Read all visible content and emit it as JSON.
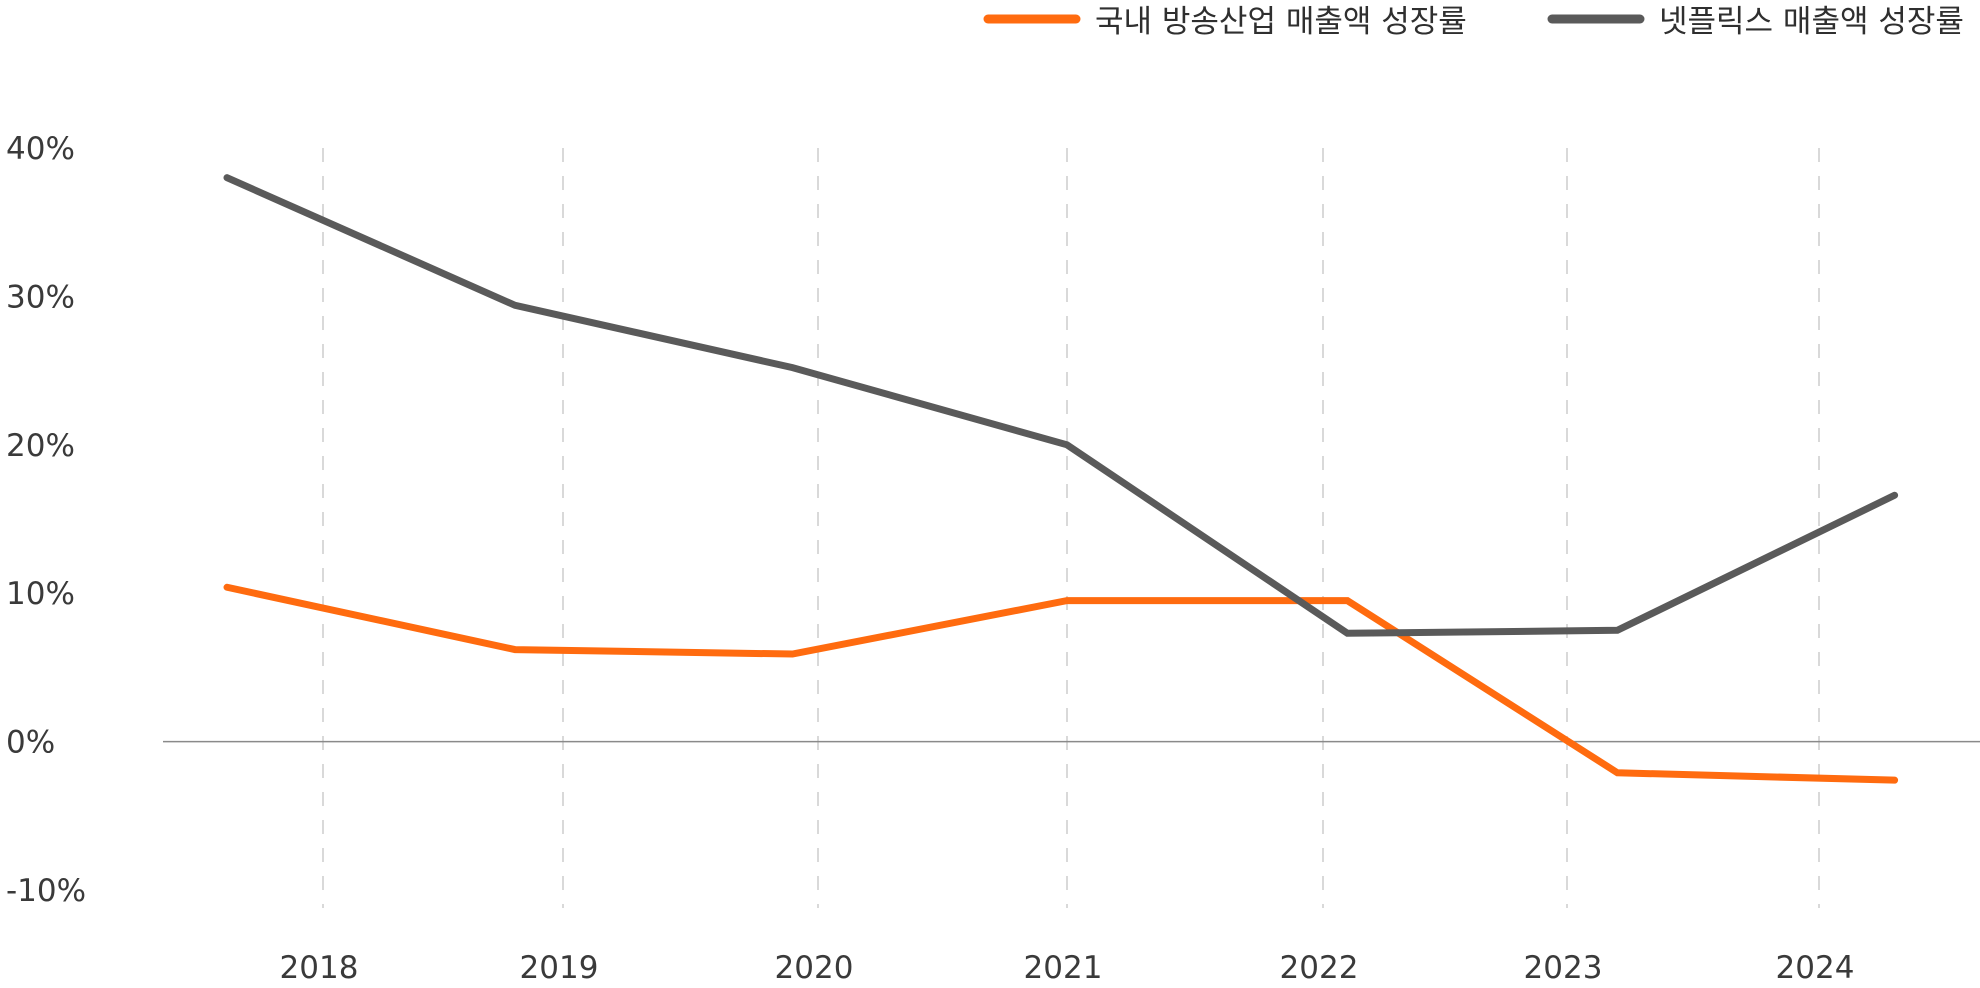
{
  "chart_data": {
    "type": "line",
    "title": "",
    "xlabel": "",
    "ylabel": "",
    "ylim": [
      -10,
      40
    ],
    "yticks": [
      40,
      30,
      20,
      10,
      0,
      -10
    ],
    "ytick_labels": [
      "40%",
      "30%",
      "20%",
      "10%",
      "0%",
      "-10%"
    ],
    "categories": [
      "2018",
      "2019",
      "2020",
      "2021",
      "2022",
      "2023",
      "2024"
    ],
    "grid": "vertical dashed",
    "legend_position": "top-right",
    "series": [
      {
        "name": "국내 방송산업 매출액 성장률",
        "color": "#FF6B0F",
        "points": [
          {
            "x": "2017.6",
            "y": 10.4
          },
          {
            "x": "2018.8",
            "y": 6.2
          },
          {
            "x": "2019.9",
            "y": 5.9
          },
          {
            "x": "2021.0",
            "y": 9.5
          },
          {
            "x": "2022.1",
            "y": 9.5
          },
          {
            "x": "2023.2",
            "y": -2.1
          },
          {
            "x": "2024.3",
            "y": -2.6
          }
        ]
      },
      {
        "name": "넷플릭스 매출액 성장률",
        "color": "#5A5A5A",
        "points": [
          {
            "x": "2017.6",
            "y": 38.0
          },
          {
            "x": "2018.8",
            "y": 29.4
          },
          {
            "x": "2019.9",
            "y": 25.2
          },
          {
            "x": "2021.0",
            "y": 20.0
          },
          {
            "x": "2022.1",
            "y": 7.3
          },
          {
            "x": "2023.2",
            "y": 7.5
          },
          {
            "x": "2024.3",
            "y": 16.6
          }
        ]
      }
    ]
  }
}
